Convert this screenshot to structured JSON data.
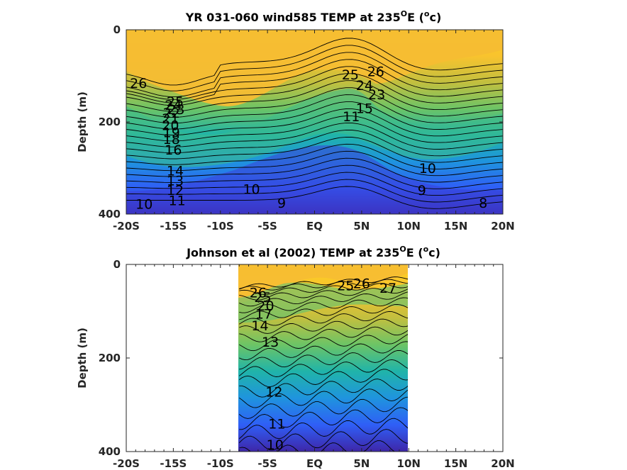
{
  "chart_data": [
    {
      "type": "heatmap",
      "subtype": "filled-contour",
      "title": {
        "prefix": "YR 031-060 wind585 TEMP at 235",
        "sup1": "O",
        "mid": "E (",
        "sup2": "o",
        "suffix": "c)"
      },
      "ylabel": "Depth (m)",
      "xlabel": "",
      "x_ticks": [
        "-20S",
        "-15S",
        "-10S",
        "-5S",
        "EQ",
        "5N",
        "10N",
        "15N",
        "20N"
      ],
      "x_tick_values": [
        -20,
        -15,
        -10,
        -5,
        0,
        5,
        10,
        15,
        20
      ],
      "y_ticks": [
        "0",
        "200",
        "400"
      ],
      "y_tick_values": [
        0,
        200,
        400
      ],
      "xlim": [
        -20,
        20
      ],
      "ylim": [
        400,
        0
      ],
      "y_reversed": true,
      "data_extent_lat": [
        -20,
        20
      ],
      "colormap": [
        "#3e26a8",
        "#2f5ff6",
        "#1f94de",
        "#20b4a9",
        "#6cc466",
        "#c2bf3f",
        "#f9c32e",
        "#fbd022"
      ],
      "grid": false,
      "contour_labels": [
        {
          "text": "26",
          "lat": -18.7,
          "depth": 115
        },
        {
          "text": "25",
          "lat": -14.8,
          "depth": 155
        },
        {
          "text": "24",
          "lat": -15.0,
          "depth": 163
        },
        {
          "text": "23",
          "lat": -14.7,
          "depth": 172
        },
        {
          "text": "22",
          "lat": -15.2,
          "depth": 180
        },
        {
          "text": "21",
          "lat": -15.3,
          "depth": 192
        },
        {
          "text": "20",
          "lat": -15.3,
          "depth": 207
        },
        {
          "text": "19",
          "lat": -15.2,
          "depth": 222
        },
        {
          "text": "18",
          "lat": -15.2,
          "depth": 237
        },
        {
          "text": "16",
          "lat": -15.0,
          "depth": 260
        },
        {
          "text": "14",
          "lat": -14.8,
          "depth": 305
        },
        {
          "text": "13",
          "lat": -14.8,
          "depth": 327
        },
        {
          "text": "12",
          "lat": -14.8,
          "depth": 348
        },
        {
          "text": "11",
          "lat": -14.6,
          "depth": 370
        },
        {
          "text": "10",
          "lat": -18.1,
          "depth": 378
        },
        {
          "text": "10",
          "lat": -6.7,
          "depth": 345
        },
        {
          "text": "9",
          "lat": -3.5,
          "depth": 375
        },
        {
          "text": "25",
          "lat": 3.8,
          "depth": 97
        },
        {
          "text": "26",
          "lat": 6.5,
          "depth": 90
        },
        {
          "text": "24",
          "lat": 5.3,
          "depth": 120
        },
        {
          "text": "23",
          "lat": 6.6,
          "depth": 140
        },
        {
          "text": "15",
          "lat": 5.3,
          "depth": 170
        },
        {
          "text": "11",
          "lat": 3.9,
          "depth": 188
        },
        {
          "text": "10",
          "lat": 12.0,
          "depth": 300
        },
        {
          "text": "9",
          "lat": 11.4,
          "depth": 348
        },
        {
          "text": "8",
          "lat": 17.9,
          "depth": 375
        }
      ]
    },
    {
      "type": "heatmap",
      "subtype": "filled-contour",
      "title": {
        "prefix": "Johnson et al (2002) TEMP at 235",
        "sup1": "O",
        "mid": "E (",
        "sup2": "o",
        "suffix": "c)"
      },
      "ylabel": "Depth (m)",
      "xlabel": "",
      "x_ticks": [
        "-20S",
        "-15S",
        "-10S",
        "-5S",
        "EQ",
        "5N",
        "10N",
        "15N",
        "20N"
      ],
      "x_tick_values": [
        -20,
        -15,
        -10,
        -5,
        0,
        5,
        10,
        15,
        20
      ],
      "y_ticks": [
        "0",
        "200",
        "400"
      ],
      "y_tick_values": [
        0,
        200,
        400
      ],
      "xlim": [
        -20,
        20
      ],
      "ylim": [
        400,
        0
      ],
      "y_reversed": true,
      "data_extent_lat": [
        -8,
        10
      ],
      "colormap": [
        "#3e26a8",
        "#2f5ff6",
        "#1f94de",
        "#20b4a9",
        "#6cc466",
        "#c2bf3f",
        "#f9c32e",
        "#fbd022"
      ],
      "grid": false,
      "contour_labels": [
        {
          "text": "26",
          "lat": -6.0,
          "depth": 60
        },
        {
          "text": "25",
          "lat": -5.5,
          "depth": 70
        },
        {
          "text": "20",
          "lat": -5.2,
          "depth": 88
        },
        {
          "text": "17",
          "lat": -5.4,
          "depth": 105
        },
        {
          "text": "14",
          "lat": -5.8,
          "depth": 130
        },
        {
          "text": "13",
          "lat": -4.7,
          "depth": 165
        },
        {
          "text": "25",
          "lat": 3.3,
          "depth": 45
        },
        {
          "text": "26",
          "lat": 5.0,
          "depth": 40
        },
        {
          "text": "27",
          "lat": 7.8,
          "depth": 50
        },
        {
          "text": "12",
          "lat": -4.3,
          "depth": 272
        },
        {
          "text": "11",
          "lat": -4.0,
          "depth": 340
        },
        {
          "text": "10",
          "lat": -4.2,
          "depth": 385
        }
      ]
    }
  ]
}
